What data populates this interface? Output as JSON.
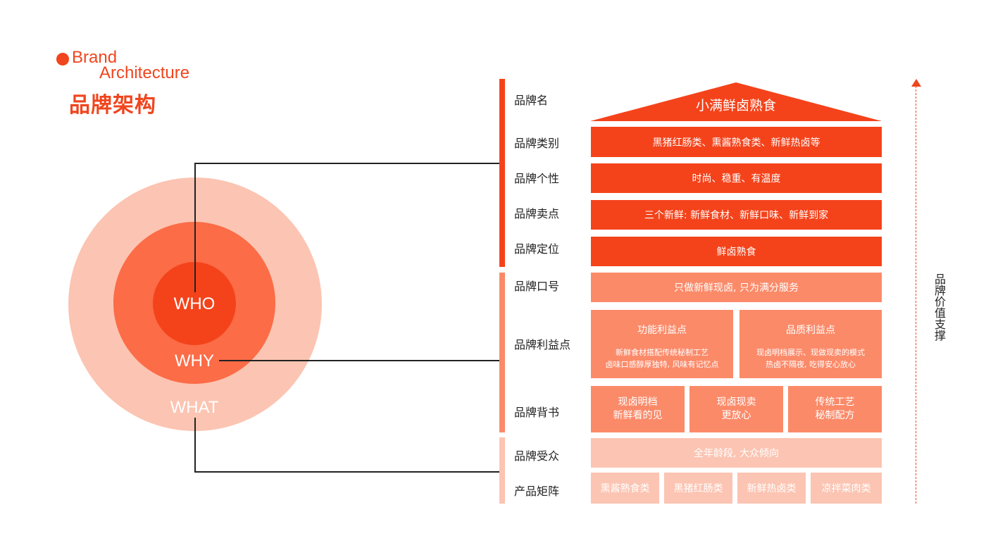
{
  "header": {
    "title_en_1": "Brand",
    "title_en_2": "Architecture",
    "title_cn": "品牌架构"
  },
  "circles": {
    "inner": "WHO",
    "middle": "WHY",
    "outer": "WHAT"
  },
  "rows": {
    "name": "品牌名",
    "category": "品牌类别",
    "personality": "品牌个性",
    "selling_point": "品牌卖点",
    "positioning": "品牌定位",
    "slogan": "品牌口号",
    "benefits": "品牌利益点",
    "endorsement": "品牌背书",
    "audience": "品牌受众",
    "products": "产品矩阵"
  },
  "boxes": {
    "roof": "小满鲜卤熟食",
    "category": "黑猪红肠类、熏酱熟食类、新鲜热卤等",
    "personality": "时尚、稳重、有温度",
    "selling_point": "三个新鲜: 新鲜食材、新鲜口味、新鲜到家",
    "positioning": "鲜卤熟食",
    "slogan": "只做新鲜现卤, 只为满分服务",
    "benefit_function": {
      "title": "功能利益点",
      "line1": "新鲜食材搭配传统秘制工艺",
      "line2": "卤味口感醇厚独特, 风味有记忆点"
    },
    "benefit_quality": {
      "title": "品质利益点",
      "line1": "现卤明档展示、现做现卖的模式",
      "line2": "热卤不隔夜, 吃得安心放心"
    },
    "endorsements": [
      {
        "line1": "现卤明档",
        "line2": "新鲜看的见"
      },
      {
        "line1": "现卤现卖",
        "line2": "更放心"
      },
      {
        "line1": "传统工艺",
        "line2": "秘制配方"
      }
    ],
    "audience": "全年龄段, 大众倾向",
    "products": [
      "熏酱熟食类",
      "黑猪红肠类",
      "新鲜热卤类",
      "凉拌菜肉类"
    ]
  },
  "axis_label": "品牌价值支撑",
  "colors": {
    "accent": "#f0451e",
    "dark": "#f4431b",
    "mid": "#fb8a69",
    "light": "#fcc4b2"
  }
}
